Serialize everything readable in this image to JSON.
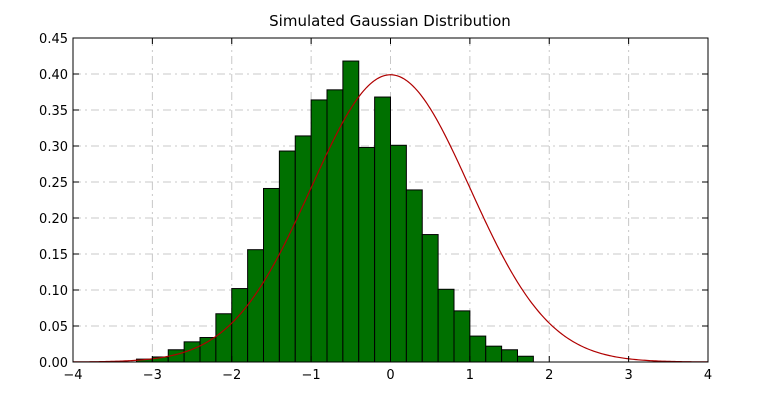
{
  "chart_data": {
    "type": "bar",
    "title": "Simulated Gaussian Distribution",
    "xlabel": "",
    "ylabel": "",
    "xlim": [
      -4,
      4
    ],
    "ylim": [
      0,
      0.45
    ],
    "grid": true,
    "x_ticks": [
      -4,
      -3,
      -2,
      -1,
      0,
      1,
      2,
      3,
      4
    ],
    "x_tick_labels": [
      "−4",
      "−3",
      "−2",
      "−1",
      "0",
      "1",
      "2",
      "3",
      "4"
    ],
    "y_ticks": [
      0,
      0.05,
      0.1,
      0.15,
      0.2,
      0.25,
      0.3,
      0.35,
      0.4,
      0.45
    ],
    "y_tick_labels": [
      "0.00",
      "0.05",
      "0.10",
      "0.15",
      "0.20",
      "0.25",
      "0.30",
      "0.35",
      "0.40",
      "0.45"
    ],
    "bin_edges": [
      -3.2,
      -3.0,
      -2.8,
      -2.6,
      -2.4,
      -2.2,
      -2.0,
      -1.8,
      -1.6,
      -1.4,
      -1.2,
      -1.0,
      -0.8,
      -0.6,
      -0.4,
      -0.2,
      0.0,
      0.2,
      0.4,
      0.6,
      0.8,
      1.0,
      1.2,
      1.4,
      1.6,
      1.8,
      2.0,
      2.2,
      2.4,
      2.6,
      2.8,
      3.0
    ],
    "values": [
      0.004,
      0.007,
      0.017,
      0.028,
      0.034,
      0.067,
      0.102,
      0.156,
      0.241,
      0.293,
      0.314,
      0.364,
      0.378,
      0.418,
      0.298,
      0.368,
      0.301,
      0.239,
      0.177,
      0.101,
      0.071,
      0.036,
      0.022,
      0.017,
      0.008,
      0.0,
      0.0,
      0.0,
      0.0,
      0.0,
      0.0
    ],
    "overlay": {
      "type": "line",
      "function": "normal_pdf",
      "mean": 0,
      "std": 1,
      "color": "#b00000"
    },
    "bar_color": "#007000"
  }
}
